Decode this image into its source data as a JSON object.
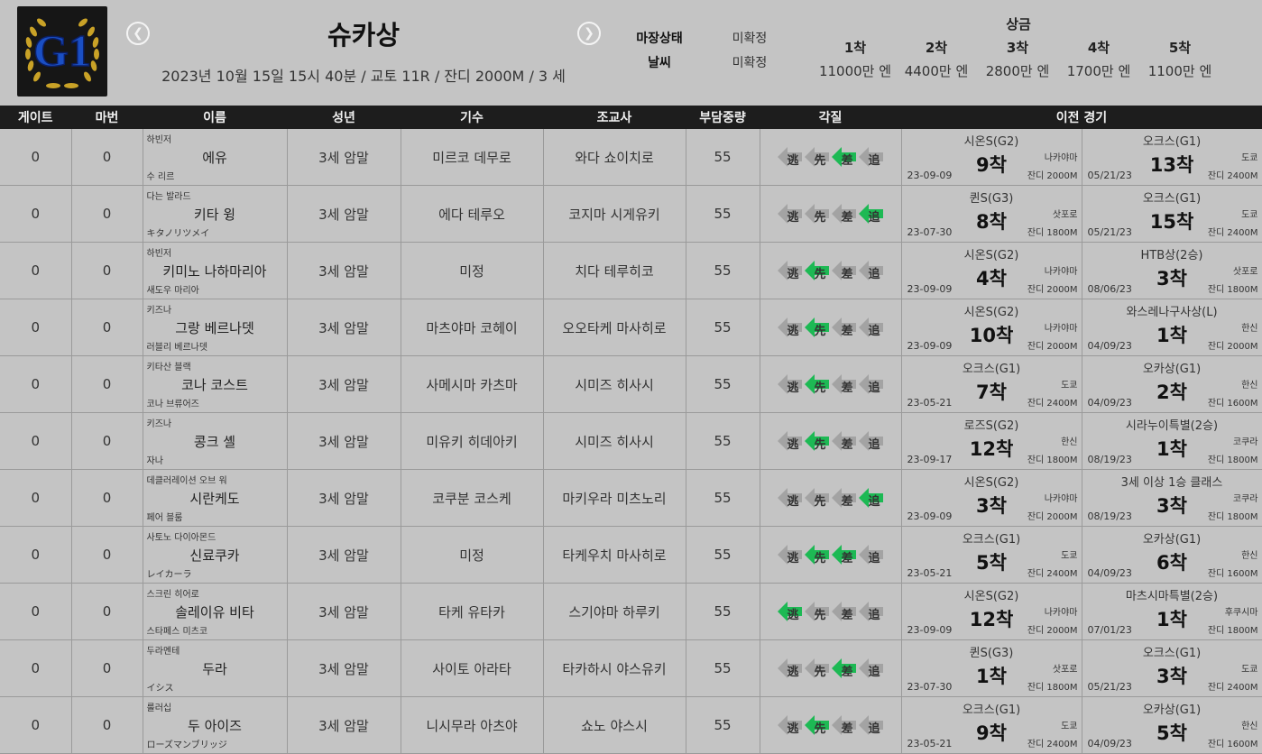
{
  "header": {
    "logo_text": "G1",
    "race_name": "슈카상",
    "race_info": "2023년 10월 15일 15시 40분 / 교토 11R / 잔디 2000M /  3 세",
    "conditions": [
      {
        "label": "마장상태",
        "value": "미확정"
      },
      {
        "label": "날씨",
        "value": "미확정"
      }
    ],
    "prize_title": "상금",
    "prizes": [
      {
        "place": "1착",
        "amount": "11000만 엔"
      },
      {
        "place": "2착",
        "amount": "4400만 엔"
      },
      {
        "place": "3착",
        "amount": "2800만 엔"
      },
      {
        "place": "4착",
        "amount": "1700만 엔"
      },
      {
        "place": "5착",
        "amount": "1100만 엔"
      }
    ]
  },
  "columns": [
    "게이트",
    "마번",
    "이름",
    "성년",
    "기수",
    "조교사",
    "부담중량",
    "각질",
    "이전 경기"
  ],
  "style_chars": [
    "逃",
    "先",
    "差",
    "追"
  ],
  "colors": {
    "active": "#1db954",
    "inactive": "#a3a3a3",
    "header_bg": "#1d1d1d"
  },
  "rows": [
    {
      "gate": "0",
      "num": "0",
      "sire": "하빈저",
      "name": "에유",
      "dam": "수 리르",
      "age": "3세 암말",
      "jockey": "미르코 데무로",
      "trainer": "와다 쇼이치로",
      "weight": "55",
      "styles": [
        0,
        0,
        1,
        0
      ],
      "prev": [
        {
          "race": "시온S(G2)",
          "rank": "9착",
          "date": "23-09-09",
          "venue": "나카야마",
          "dist": "잔디 2000M"
        },
        {
          "race": "오크스(G1)",
          "rank": "13착",
          "date": "05/21/23",
          "venue": "도쿄",
          "dist": "잔디 2400M"
        }
      ]
    },
    {
      "gate": "0",
      "num": "0",
      "sire": "다는 발라드",
      "name": "키타 윙",
      "dam": "キタノリツメイ",
      "age": "3세 암말",
      "jockey": "에다 테루오",
      "trainer": "코지마 시게유키",
      "weight": "55",
      "styles": [
        0,
        0,
        0,
        1
      ],
      "prev": [
        {
          "race": "퀸S(G3)",
          "rank": "8착",
          "date": "23-07-30",
          "venue": "삿포로",
          "dist": "잔디 1800M"
        },
        {
          "race": "오크스(G1)",
          "rank": "15착",
          "date": "05/21/23",
          "venue": "도쿄",
          "dist": "잔디 2400M"
        }
      ]
    },
    {
      "gate": "0",
      "num": "0",
      "sire": "하빈저",
      "name": "키미노 나하마리아",
      "dam": "새도우 마리아",
      "age": "3세 암말",
      "jockey": "미정",
      "trainer": "치다 테루히코",
      "weight": "55",
      "styles": [
        0,
        1,
        0,
        0
      ],
      "prev": [
        {
          "race": "시온S(G2)",
          "rank": "4착",
          "date": "23-09-09",
          "venue": "나카야마",
          "dist": "잔디 2000M"
        },
        {
          "race": "HTB상(2승)",
          "rank": "3착",
          "date": "08/06/23",
          "venue": "삿포로",
          "dist": "잔디 1800M"
        }
      ]
    },
    {
      "gate": "0",
      "num": "0",
      "sire": "키즈나",
      "name": "그랑 베르나뎃",
      "dam": "러블리 베르나뎃",
      "age": "3세 암말",
      "jockey": "마츠야마 코헤이",
      "trainer": "오오타케 마사히로",
      "weight": "55",
      "styles": [
        0,
        1,
        0,
        0
      ],
      "prev": [
        {
          "race": "시온S(G2)",
          "rank": "10착",
          "date": "23-09-09",
          "venue": "나카야마",
          "dist": "잔디 2000M"
        },
        {
          "race": "와스레나구사상(L)",
          "rank": "1착",
          "date": "04/09/23",
          "venue": "한신",
          "dist": "잔디 2000M"
        }
      ]
    },
    {
      "gate": "0",
      "num": "0",
      "sire": "키타산 블랙",
      "name": "코나 코스트",
      "dam": "코나 브류어즈",
      "age": "3세 암말",
      "jockey": "사메시마 카츠마",
      "trainer": "시미즈 히사시",
      "weight": "55",
      "styles": [
        0,
        1,
        0,
        0
      ],
      "prev": [
        {
          "race": "오크스(G1)",
          "rank": "7착",
          "date": "23-05-21",
          "venue": "도쿄",
          "dist": "잔디 2400M"
        },
        {
          "race": "오카상(G1)",
          "rank": "2착",
          "date": "04/09/23",
          "venue": "한신",
          "dist": "잔디 1600M"
        }
      ]
    },
    {
      "gate": "0",
      "num": "0",
      "sire": "키즈나",
      "name": "콩크 셸",
      "dam": "자나",
      "age": "3세 암말",
      "jockey": "미유키 히데아키",
      "trainer": "시미즈 히사시",
      "weight": "55",
      "styles": [
        0,
        1,
        0,
        0
      ],
      "prev": [
        {
          "race": "로즈S(G2)",
          "rank": "12착",
          "date": "23-09-17",
          "venue": "한신",
          "dist": "잔디 1800M"
        },
        {
          "race": "시라누이특별(2승)",
          "rank": "1착",
          "date": "08/19/23",
          "venue": "코쿠라",
          "dist": "잔디 1800M"
        }
      ]
    },
    {
      "gate": "0",
      "num": "0",
      "sire": "데클러레이션 오브 워",
      "name": "시란케도",
      "dam": "페어 블룸",
      "age": "3세 암말",
      "jockey": "코쿠분 코스케",
      "trainer": "마키우라 미츠노리",
      "weight": "55",
      "styles": [
        0,
        0,
        0,
        1
      ],
      "prev": [
        {
          "race": "시온S(G2)",
          "rank": "3착",
          "date": "23-09-09",
          "venue": "나카야마",
          "dist": "잔디 2000M"
        },
        {
          "race": "3세 이상 1승 클래스",
          "rank": "3착",
          "date": "08/19/23",
          "venue": "코쿠라",
          "dist": "잔디 1800M"
        }
      ]
    },
    {
      "gate": "0",
      "num": "0",
      "sire": "사토노 다이아몬드",
      "name": "신료쿠카",
      "dam": "レイカーラ",
      "age": "3세 암말",
      "jockey": "미정",
      "trainer": "타케우치 마사히로",
      "weight": "55",
      "styles": [
        0,
        1,
        1,
        0
      ],
      "prev": [
        {
          "race": "오크스(G1)",
          "rank": "5착",
          "date": "23-05-21",
          "venue": "도쿄",
          "dist": "잔디 2400M"
        },
        {
          "race": "오카상(G1)",
          "rank": "6착",
          "date": "04/09/23",
          "venue": "한신",
          "dist": "잔디 1600M"
        }
      ]
    },
    {
      "gate": "0",
      "num": "0",
      "sire": "스크린 히어로",
      "name": "솔레이유 비타",
      "dam": "스타페스 미츠코",
      "age": "3세 암말",
      "jockey": "타케 유타카",
      "trainer": "스기야마 하루키",
      "weight": "55",
      "styles": [
        1,
        0,
        0,
        0
      ],
      "prev": [
        {
          "race": "시온S(G2)",
          "rank": "12착",
          "date": "23-09-09",
          "venue": "나카야마",
          "dist": "잔디 2000M"
        },
        {
          "race": "마츠시마특별(2승)",
          "rank": "1착",
          "date": "07/01/23",
          "venue": "후쿠시마",
          "dist": "잔디 1800M"
        }
      ]
    },
    {
      "gate": "0",
      "num": "0",
      "sire": "두라멘테",
      "name": "두라",
      "dam": "イシス",
      "age": "3세 암말",
      "jockey": "사이토 아라타",
      "trainer": "타카하시 야스유키",
      "weight": "55",
      "styles": [
        0,
        0,
        1,
        0
      ],
      "prev": [
        {
          "race": "퀸S(G3)",
          "rank": "1착",
          "date": "23-07-30",
          "venue": "삿포로",
          "dist": "잔디 1800M"
        },
        {
          "race": "오크스(G1)",
          "rank": "3착",
          "date": "05/21/23",
          "venue": "도쿄",
          "dist": "잔디 2400M"
        }
      ]
    },
    {
      "gate": "0",
      "num": "0",
      "sire": "룰러십",
      "name": "두 아이즈",
      "dam": "ローズマンブリッジ",
      "age": "3세 암말",
      "jockey": "니시무라 아츠야",
      "trainer": "쇼노 야스시",
      "weight": "55",
      "styles": [
        0,
        1,
        0,
        0
      ],
      "prev": [
        {
          "race": "오크스(G1)",
          "rank": "9착",
          "date": "23-05-21",
          "venue": "도쿄",
          "dist": "잔디 2400M"
        },
        {
          "race": "오카상(G1)",
          "rank": "5착",
          "date": "04/09/23",
          "venue": "한신",
          "dist": "잔디 1600M"
        }
      ]
    }
  ]
}
